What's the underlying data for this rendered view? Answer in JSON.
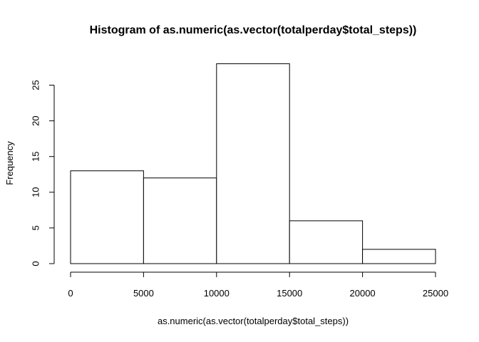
{
  "chart_data": {
    "type": "bar",
    "title": "Histogram of as.numeric(as.vector(totalperday$total_steps))",
    "xlabel": "as.numeric(as.vector(totalperday$total_steps))",
    "ylabel": "Frequency",
    "bins": [
      {
        "start": 0,
        "end": 5000,
        "count": 13
      },
      {
        "start": 5000,
        "end": 10000,
        "count": 12
      },
      {
        "start": 10000,
        "end": 15000,
        "count": 28
      },
      {
        "start": 15000,
        "end": 20000,
        "count": 6
      },
      {
        "start": 20000,
        "end": 25000,
        "count": 2
      }
    ],
    "xlim": [
      0,
      25000
    ],
    "ylim": [
      0,
      28
    ],
    "x_ticks": [
      "0",
      "5000",
      "10000",
      "15000",
      "20000",
      "25000"
    ],
    "y_ticks": [
      "0",
      "5",
      "10",
      "15",
      "20",
      "25"
    ],
    "grid": false,
    "legend": "none"
  }
}
